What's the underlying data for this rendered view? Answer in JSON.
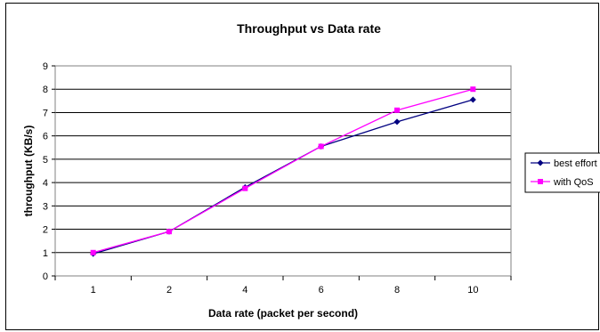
{
  "chart_data": {
    "type": "line",
    "title": "Throughput vs Data rate",
    "xlabel": "Data rate (packet per second)",
    "ylabel": "throughput (KB/s)",
    "categories": [
      "1",
      "2",
      "4",
      "6",
      "8",
      "10"
    ],
    "ylim": [
      0,
      9
    ],
    "yticks": [
      "0",
      "1",
      "2",
      "3",
      "4",
      "5",
      "6",
      "7",
      "8",
      "9"
    ],
    "grid": true,
    "legend_position": "right",
    "series": [
      {
        "name": "best effort",
        "color": "#000080",
        "marker": "diamond",
        "values": [
          0.95,
          1.9,
          3.8,
          5.55,
          6.6,
          7.55
        ]
      },
      {
        "name": "with QoS",
        "color": "#ff00ff",
        "marker": "square",
        "values": [
          1.0,
          1.9,
          3.75,
          5.55,
          7.1,
          8.0
        ]
      }
    ]
  }
}
